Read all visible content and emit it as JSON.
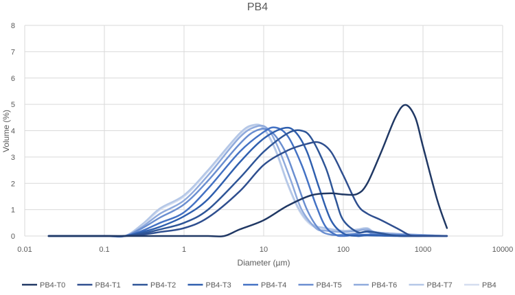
{
  "chart_data": {
    "type": "line",
    "title": "PB4",
    "xlabel": "Diameter (µm)",
    "ylabel": "Volume (%)",
    "x_scale": "log",
    "xlim": [
      0.01,
      10000
    ],
    "ylim": [
      0,
      8
    ],
    "x_ticks": [
      "0.01",
      "0.1",
      "1",
      "10",
      "100",
      "1000",
      "10000"
    ],
    "y_ticks": [
      "0",
      "1",
      "2",
      "3",
      "4",
      "5",
      "6",
      "7",
      "8"
    ],
    "grid": true,
    "legend_position": "bottom",
    "series": [
      {
        "name": "PB4-T0",
        "color": "#203864",
        "points": [
          [
            0.02,
            0
          ],
          [
            0.1,
            0
          ],
          [
            0.5,
            0
          ],
          [
            1,
            0
          ],
          [
            2,
            0
          ],
          [
            3.2,
            0
          ],
          [
            5,
            0.25
          ],
          [
            10,
            0.6
          ],
          [
            20,
            1.15
          ],
          [
            40,
            1.55
          ],
          [
            70,
            1.62
          ],
          [
            100,
            1.58
          ],
          [
            150,
            1.6
          ],
          [
            200,
            2.0
          ],
          [
            300,
            3.2
          ],
          [
            450,
            4.5
          ],
          [
            600,
            4.98
          ],
          [
            800,
            4.5
          ],
          [
            1000,
            3.4
          ],
          [
            1500,
            1.4
          ],
          [
            2000,
            0.3
          ]
        ]
      },
      {
        "name": "PB4-T1",
        "color": "#2f4f8f",
        "points": [
          [
            0.02,
            0
          ],
          [
            0.1,
            0
          ],
          [
            0.18,
            0
          ],
          [
            0.3,
            0.05
          ],
          [
            0.5,
            0.15
          ],
          [
            1,
            0.3
          ],
          [
            2,
            0.7
          ],
          [
            5,
            1.7
          ],
          [
            10,
            2.7
          ],
          [
            20,
            3.25
          ],
          [
            35,
            3.5
          ],
          [
            50,
            3.55
          ],
          [
            70,
            3.2
          ],
          [
            100,
            2.3
          ],
          [
            150,
            1.2
          ],
          [
            200,
            0.85
          ],
          [
            300,
            0.6
          ],
          [
            500,
            0.25
          ],
          [
            700,
            0.02
          ],
          [
            1000,
            0
          ],
          [
            2000,
            0
          ]
        ]
      },
      {
        "name": "PB4-T2",
        "color": "#2e5597",
        "points": [
          [
            0.02,
            0
          ],
          [
            0.1,
            0
          ],
          [
            0.18,
            0
          ],
          [
            0.3,
            0.1
          ],
          [
            0.5,
            0.25
          ],
          [
            1,
            0.5
          ],
          [
            2,
            1.0
          ],
          [
            5,
            2.2
          ],
          [
            10,
            3.2
          ],
          [
            20,
            3.9
          ],
          [
            30,
            4.0
          ],
          [
            40,
            3.7
          ],
          [
            60,
            2.6
          ],
          [
            80,
            1.4
          ],
          [
            100,
            0.6
          ],
          [
            150,
            0.15
          ],
          [
            200,
            0.18
          ],
          [
            300,
            0.1
          ],
          [
            500,
            0
          ],
          [
            1000,
            0
          ],
          [
            2000,
            0
          ]
        ]
      },
      {
        "name": "PB4-T3",
        "color": "#2f5fae",
        "points": [
          [
            0.02,
            0
          ],
          [
            0.1,
            0
          ],
          [
            0.18,
            0
          ],
          [
            0.3,
            0.15
          ],
          [
            0.5,
            0.35
          ],
          [
            1,
            0.75
          ],
          [
            2,
            1.4
          ],
          [
            5,
            2.8
          ],
          [
            10,
            3.7
          ],
          [
            18,
            4.1
          ],
          [
            25,
            3.95
          ],
          [
            35,
            3.2
          ],
          [
            50,
            1.8
          ],
          [
            70,
            0.6
          ],
          [
            100,
            0.1
          ],
          [
            150,
            0
          ],
          [
            200,
            0.02
          ],
          [
            500,
            0
          ],
          [
            2000,
            0
          ]
        ]
      },
      {
        "name": "PB4-T4",
        "color": "#4472c4",
        "points": [
          [
            0.02,
            0
          ],
          [
            0.1,
            0
          ],
          [
            0.18,
            0
          ],
          [
            0.3,
            0.2
          ],
          [
            0.5,
            0.5
          ],
          [
            1,
            0.9
          ],
          [
            2,
            1.8
          ],
          [
            5,
            3.2
          ],
          [
            10,
            3.95
          ],
          [
            14,
            4.12
          ],
          [
            20,
            3.8
          ],
          [
            30,
            2.7
          ],
          [
            45,
            1.2
          ],
          [
            60,
            0.35
          ],
          [
            80,
            0.05
          ],
          [
            100,
            0
          ],
          [
            200,
            0.05
          ],
          [
            2000,
            0
          ]
        ]
      },
      {
        "name": "PB4-T5",
        "color": "#6a8ed0",
        "points": [
          [
            0.02,
            0
          ],
          [
            0.1,
            0
          ],
          [
            0.18,
            0
          ],
          [
            0.3,
            0.3
          ],
          [
            0.5,
            0.7
          ],
          [
            1,
            1.2
          ],
          [
            2,
            2.1
          ],
          [
            5,
            3.5
          ],
          [
            8,
            4.0
          ],
          [
            12,
            4.0
          ],
          [
            18,
            3.3
          ],
          [
            25,
            2.2
          ],
          [
            35,
            1.0
          ],
          [
            50,
            0.25
          ],
          [
            70,
            0.05
          ],
          [
            100,
            0.05
          ],
          [
            150,
            0.1
          ],
          [
            200,
            0.15
          ],
          [
            300,
            0.05
          ],
          [
            2000,
            0
          ]
        ]
      },
      {
        "name": "PB4-T6",
        "color": "#8faadc",
        "points": [
          [
            0.02,
            0
          ],
          [
            0.1,
            0
          ],
          [
            0.18,
            0
          ],
          [
            0.3,
            0.35
          ],
          [
            0.5,
            0.85
          ],
          [
            1,
            1.35
          ],
          [
            2,
            2.3
          ],
          [
            5,
            3.75
          ],
          [
            8,
            4.15
          ],
          [
            11,
            4.1
          ],
          [
            15,
            3.4
          ],
          [
            22,
            2.1
          ],
          [
            30,
            1.0
          ],
          [
            45,
            0.3
          ],
          [
            60,
            0.2
          ],
          [
            100,
            0.15
          ],
          [
            150,
            0.2
          ],
          [
            200,
            0.25
          ],
          [
            300,
            0.12
          ],
          [
            2000,
            0
          ]
        ]
      },
      {
        "name": "PB4-T7",
        "color": "#b4c7e7",
        "points": [
          [
            0.02,
            0
          ],
          [
            0.1,
            0
          ],
          [
            0.18,
            0
          ],
          [
            0.3,
            0.45
          ],
          [
            0.5,
            1.05
          ],
          [
            1,
            1.55
          ],
          [
            2,
            2.5
          ],
          [
            5,
            3.9
          ],
          [
            7.5,
            4.22
          ],
          [
            10,
            4.1
          ],
          [
            14,
            3.3
          ],
          [
            20,
            2.0
          ],
          [
            28,
            1.0
          ],
          [
            40,
            0.45
          ],
          [
            60,
            0.3
          ],
          [
            100,
            0.2
          ],
          [
            150,
            0.25
          ],
          [
            200,
            0.3
          ],
          [
            300,
            0.12
          ],
          [
            2000,
            0
          ]
        ]
      },
      {
        "name": "PB4",
        "color": "#d4ddef",
        "points": [
          [
            0.02,
            0
          ],
          [
            0.1,
            0
          ],
          [
            0.18,
            0
          ],
          [
            0.3,
            0.4
          ],
          [
            0.5,
            1.0
          ],
          [
            1,
            1.5
          ],
          [
            2,
            2.45
          ],
          [
            5,
            3.85
          ],
          [
            7.5,
            4.18
          ],
          [
            10,
            4.05
          ],
          [
            14,
            3.25
          ],
          [
            20,
            1.95
          ],
          [
            28,
            0.95
          ],
          [
            40,
            0.4
          ],
          [
            60,
            0.25
          ],
          [
            100,
            0.2
          ],
          [
            150,
            0.22
          ],
          [
            200,
            0.28
          ],
          [
            300,
            0.1
          ],
          [
            2000,
            0
          ]
        ]
      }
    ]
  }
}
